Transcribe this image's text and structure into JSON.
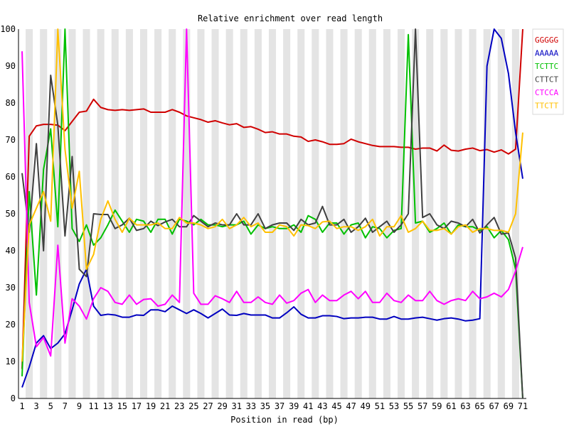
{
  "chart_data": {
    "type": "line",
    "title": "Relative enrichment over read length",
    "xlabel": "Position in read (bp)",
    "ylabel": "",
    "ylim": [
      0,
      100
    ],
    "yticks": [
      0,
      10,
      20,
      30,
      40,
      50,
      60,
      70,
      80,
      90,
      100
    ],
    "xticks": [
      1,
      3,
      5,
      7,
      9,
      11,
      13,
      15,
      17,
      19,
      21,
      23,
      25,
      27,
      29,
      31,
      33,
      35,
      37,
      39,
      41,
      43,
      45,
      47,
      49,
      51,
      53,
      55,
      57,
      59,
      61,
      63,
      65,
      67,
      69,
      71
    ],
    "x": [
      1,
      2,
      3,
      4,
      5,
      6,
      7,
      8,
      9,
      10,
      11,
      12,
      13,
      14,
      15,
      16,
      17,
      18,
      19,
      20,
      21,
      22,
      23,
      24,
      25,
      26,
      27,
      28,
      29,
      30,
      31,
      32,
      33,
      34,
      35,
      36,
      37,
      38,
      39,
      40,
      41,
      42,
      43,
      44,
      45,
      46,
      47,
      48,
      49,
      50,
      51,
      52,
      53,
      54,
      55,
      56,
      57,
      58,
      59,
      60,
      61,
      62,
      63,
      64,
      65,
      66,
      67,
      68,
      69,
      70,
      71
    ],
    "alternating_background_bands": true,
    "legend_position": "right",
    "series": [
      {
        "name": "GGGGG",
        "color": "#d00000",
        "values": [
          8,
          71,
          73.8,
          74.2,
          74.2,
          74,
          72.5,
          75,
          77.5,
          77.8,
          81,
          78.8,
          78.2,
          78,
          78.2,
          78,
          78.2,
          78.4,
          77.5,
          77.5,
          77.5,
          78.2,
          77.5,
          76.5,
          76,
          75.5,
          74.8,
          75.2,
          74.6,
          74.1,
          74.4,
          73.4,
          73.6,
          72.9,
          72,
          72.2,
          71.6,
          71.6,
          71,
          70.8,
          69.6,
          70,
          69.5,
          68.8,
          68.8,
          69,
          70.2,
          69.5,
          69,
          68.5,
          68.2,
          68.2,
          68.2,
          68,
          68,
          67.5,
          67.8,
          67.8,
          67,
          68.6,
          67.2,
          67,
          67.5,
          67.8,
          67.1,
          67.4,
          66.7,
          67.3,
          66.2,
          67.5,
          100
        ]
      },
      {
        "name": "AAAAA",
        "color": "#0000c0",
        "values": [
          3,
          8.5,
          15,
          17,
          13.5,
          15,
          17.5,
          24,
          31,
          35,
          25,
          22.5,
          22.8,
          22.6,
          22,
          22,
          22.6,
          22.5,
          24,
          24,
          23.5,
          25,
          24,
          23,
          24,
          23,
          21.8,
          23,
          24.2,
          22.6,
          22.5,
          23,
          22.6,
          22.6,
          22.6,
          21.8,
          21.8,
          23.2,
          24.8,
          22.8,
          21.8,
          21.8,
          22.4,
          22.4,
          22.2,
          21.6,
          21.8,
          21.8,
          22,
          22,
          21.5,
          21.5,
          22.2,
          21.5,
          21.5,
          21.8,
          22,
          21.6,
          21.2,
          21.6,
          21.8,
          21.5,
          21,
          21.2,
          21.6,
          90,
          100,
          97.5,
          88,
          72,
          59.5
        ]
      },
      {
        "name": "TCTTC",
        "color": "#00c000",
        "values": [
          6,
          56,
          28,
          62,
          73,
          46.5,
          100,
          46,
          42.5,
          47,
          41.5,
          43.5,
          47,
          51,
          48,
          45,
          48.5,
          48,
          45,
          48.5,
          48.5,
          44.5,
          48.5,
          48,
          47,
          48.5,
          47,
          47,
          46.5,
          47,
          47,
          48,
          44.5,
          47,
          46,
          46.5,
          46,
          46,
          47,
          45,
          49.5,
          48.5,
          45,
          47.5,
          47.5,
          44.5,
          47,
          47.5,
          43.5,
          46.5,
          46,
          43.5,
          45.5,
          46,
          98.5,
          47.5,
          48,
          45,
          46,
          47.5,
          44.5,
          47,
          46.5,
          46.5,
          45.5,
          46.5,
          43.5,
          45.5,
          43,
          35,
          0
        ]
      },
      {
        "name": "CTTCT",
        "color": "#404040",
        "values": [
          61,
          45,
          69,
          40,
          87.5,
          74,
          44,
          65.5,
          35,
          33,
          50,
          49.8,
          49.8,
          46,
          47,
          48.8,
          45.5,
          46,
          48,
          46.8,
          47.8,
          48.5,
          46.5,
          46.5,
          49.5,
          48,
          46.5,
          47.5,
          47,
          47,
          50,
          47,
          47,
          50,
          46,
          47,
          47.5,
          47.5,
          45.5,
          48.5,
          47,
          47.5,
          52,
          47,
          47,
          48.5,
          45,
          46.5,
          48.8,
          45,
          46.5,
          48,
          45,
          47,
          50,
          100,
          49,
          50,
          47,
          46,
          48,
          47.5,
          46.5,
          48.5,
          44.8,
          47,
          49,
          44.5,
          44.8,
          38,
          0
        ]
      },
      {
        "name": "CTCCA",
        "color": "#ff00ff",
        "values": [
          94,
          26,
          14,
          16.5,
          11.5,
          41.5,
          15,
          27,
          25,
          21.5,
          27,
          30,
          29,
          26,
          25.5,
          28,
          25.5,
          26.8,
          27,
          25,
          25.5,
          28,
          26,
          100,
          28.5,
          25.5,
          25.5,
          27.8,
          27,
          26,
          29,
          26,
          26,
          27.5,
          26,
          25.5,
          28,
          25.8,
          26.5,
          28.5,
          29.5,
          26,
          28,
          26.5,
          26.5,
          28,
          29,
          27,
          29,
          26,
          26,
          28.5,
          26.5,
          26,
          28,
          26.5,
          26.5,
          29,
          26.5,
          25.5,
          26.5,
          27,
          26.5,
          29,
          27,
          27.5,
          28.5,
          27.5,
          29.5,
          34.5,
          41
        ]
      },
      {
        "name": "TTCTT",
        "color": "#ffc000",
        "values": [
          10,
          47,
          51.5,
          56,
          48,
          100,
          67.5,
          51.5,
          61.5,
          35,
          39,
          48.5,
          53.5,
          48.5,
          45,
          48.8,
          47,
          47,
          47,
          47.5,
          46,
          46,
          49,
          47.5,
          47.5,
          47,
          46,
          46.5,
          48.5,
          46,
          47,
          49,
          46.5,
          47.5,
          45,
          45,
          47,
          46.5,
          44,
          47,
          46.8,
          46,
          47.8,
          48,
          46,
          46.5,
          46.5,
          45.5,
          46.5,
          48.5,
          44,
          46.5,
          46.5,
          49.5,
          45,
          46,
          48,
          45.5,
          45.5,
          46,
          44.5,
          46.5,
          47,
          45,
          46,
          46,
          45.5,
          45.5,
          45,
          50,
          72
        ]
      }
    ]
  }
}
